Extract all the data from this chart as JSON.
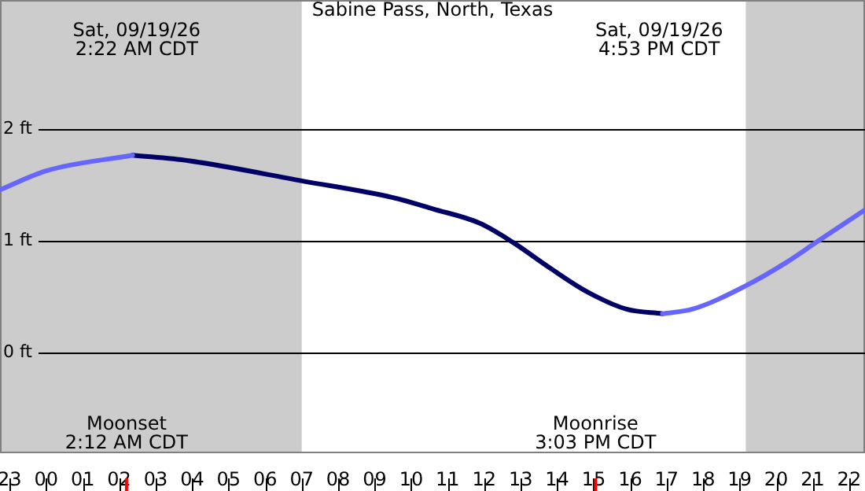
{
  "chart_data": {
    "type": "line",
    "title": "Sabine Pass, North, Texas",
    "series": [
      {
        "color": "#6666ff",
        "x": [
          "--09-18T22:44",
          "--09-19T00:00",
          "--09-19T02:22",
          null,
          "--09-19T16:53",
          "--09-19T17:42",
          "--09-19T19:10",
          "--09-19T20:17",
          "--09-19T21:06",
          "--09-19T22:26"
        ],
        "values": [
          1.46,
          1.63,
          1.77,
          null,
          0.35,
          0.39,
          0.6,
          0.81,
          0.99,
          1.28
        ]
      },
      {
        "color": "#000066",
        "x": [
          "--09-19T02:22",
          "--09-19T03:54",
          "--09-19T07:00",
          "--09-19T09:30",
          "--09-19T10:35",
          "--09-19T11:53",
          "--09-19T12:47",
          "--09-19T13:48",
          "--09-19T14:48",
          "--09-19T15:54",
          "--09-19T16:53"
        ],
        "values": [
          1.77,
          1.72,
          1.54,
          1.39,
          1.29,
          1.16,
          0.99,
          0.76,
          0.55,
          0.39,
          0.35
        ]
      }
    ],
    "xlim": [
      "--09-18T22:44",
      "--09-19T22:26"
    ],
    "xticks": [
      {
        "value": "--09-18T23:00",
        "label": "23"
      },
      {
        "value": "--09-19T00:00",
        "label": "00"
      },
      {
        "value": "--09-19T01:00",
        "label": "01"
      },
      {
        "value": "--09-19T02:00",
        "label": "02"
      },
      {
        "value": "--09-19T03:00",
        "label": "03"
      },
      {
        "value": "--09-19T04:00",
        "label": "04"
      },
      {
        "value": "--09-19T05:00",
        "label": "05"
      },
      {
        "value": "--09-19T06:00",
        "label": "06"
      },
      {
        "value": "--09-19T07:00",
        "label": "07"
      },
      {
        "value": "--09-19T08:00",
        "label": "08"
      },
      {
        "value": "--09-19T09:00",
        "label": "09"
      },
      {
        "value": "--09-19T10:00",
        "label": "10"
      },
      {
        "value": "--09-19T11:00",
        "label": "11"
      },
      {
        "value": "--09-19T12:00",
        "label": "12"
      },
      {
        "value": "--09-19T13:00",
        "label": "13"
      },
      {
        "value": "--09-19T14:00",
        "label": "14"
      },
      {
        "value": "--09-19T15:00",
        "label": "15"
      },
      {
        "value": "--09-19T16:00",
        "label": "16"
      },
      {
        "value": "--09-19T17:00",
        "label": "17"
      },
      {
        "value": "--09-19T18:00",
        "label": "18"
      },
      {
        "value": "--09-19T19:00",
        "label": "19"
      },
      {
        "value": "--09-19T20:00",
        "label": "20"
      },
      {
        "value": "--09-19T21:00",
        "label": "21"
      },
      {
        "value": "--09-19T22:00",
        "label": "22"
      }
    ],
    "ylim": [
      -0.9,
      3.16
    ],
    "yticks": [
      {
        "value": 0,
        "label": "0 ft"
      },
      {
        "value": 1,
        "label": "1 ft"
      },
      {
        "value": 2,
        "label": "2 ft"
      }
    ],
    "grid": "y",
    "legend": false,
    "marker": "none",
    "line_style": "solid",
    "bands": [
      {
        "axis": "x",
        "from": "--09-18T22:44",
        "to": "--09-19T07:00",
        "color": "#cccccc"
      },
      {
        "axis": "x",
        "from": "--09-19T19:10",
        "to": "--09-19T22:26",
        "color": "#cccccc"
      }
    ],
    "ref_lines": [
      {
        "axis": "x",
        "value": "--09-19T02:12",
        "label": "Moonset\n2:12 AM CDT",
        "color": "#ff0000"
      },
      {
        "axis": "x",
        "value": "--09-19T15:03",
        "label": "Moonrise\n3:03 PM CDT",
        "color": "#ff0000"
      }
    ],
    "annotations": [
      "Sat, 09/19/26\n2:22 AM CDT",
      "Sat, 09/19/26\n4:53 PM CDT"
    ]
  }
}
